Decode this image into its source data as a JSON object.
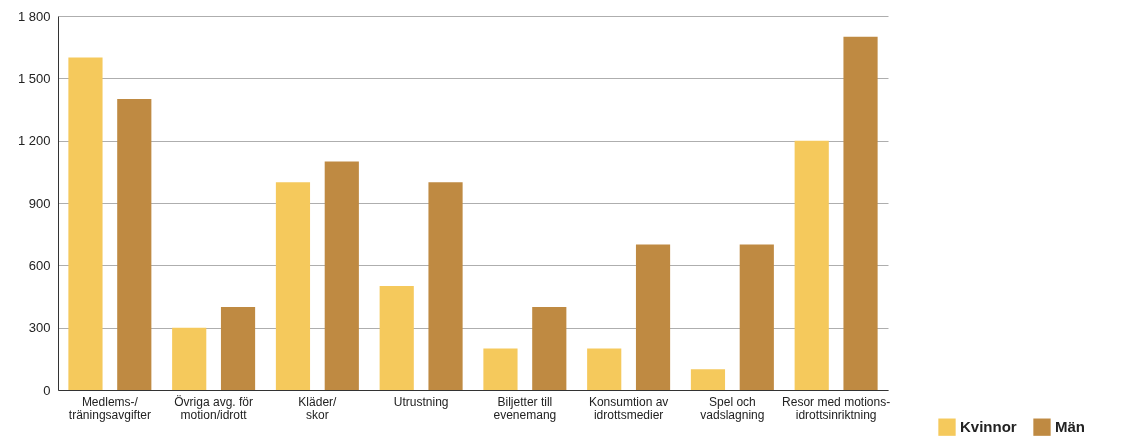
{
  "chart_data": {
    "type": "bar",
    "categories": [
      "Medlems-/\nträningsavgifter",
      "Övriga avg. för\nmotion/idrott",
      "Kläder/\nskor",
      "Utrustning",
      "Biljetter till\nevenemang",
      "Konsumtion av\nidrottsmedier",
      "Spel och\nvadslagning",
      "Resor med motions-\nidrottsinriktning"
    ],
    "series": [
      {
        "name": "Kvinnor",
        "color": "#f5c95c",
        "values": [
          1600,
          300,
          1000,
          500,
          200,
          200,
          100,
          1200
        ]
      },
      {
        "name": "Män",
        "color": "#bf8a42",
        "values": [
          1400,
          400,
          1100,
          1000,
          400,
          700,
          700,
          1700
        ]
      }
    ],
    "ylim": [
      0,
      1800
    ],
    "yticks": [
      0,
      300,
      600,
      900,
      {
        "value": 1200,
        "label": "1 200"
      },
      {
        "value": 1500,
        "label": "1 500"
      },
      {
        "value": 1800,
        "label": "1 800"
      }
    ],
    "grid": "y",
    "legend": "bottom right"
  }
}
